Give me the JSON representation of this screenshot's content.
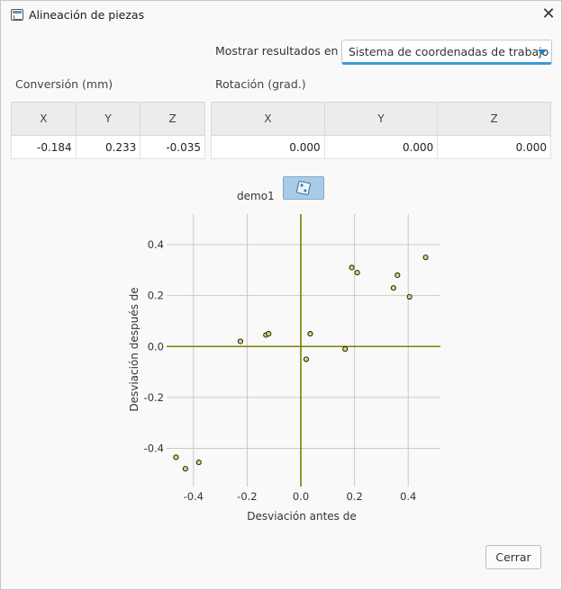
{
  "window": {
    "title": "Alineación de piezas",
    "close_glyph": "✕"
  },
  "display": {
    "label": "Mostrar resultados en",
    "selected": "Sistema de coordenadas de trabajo"
  },
  "translation": {
    "label": "Conversión (mm)",
    "headers": [
      "X",
      "Y",
      "Z"
    ],
    "values": [
      "-0.184",
      "0.233",
      "-0.035"
    ]
  },
  "rotation": {
    "label": "Rotación (grad.)",
    "headers": [
      "X",
      "Y",
      "Z"
    ],
    "values": [
      "0.000",
      "0.000",
      "0.000"
    ]
  },
  "series": {
    "label": "demo1",
    "button_icon": "dice-icon"
  },
  "chart_data": {
    "type": "scatter",
    "title": "",
    "xlabel": "Desviación antes de",
    "ylabel": "Desviación después de",
    "xlim": [
      -0.5,
      0.52
    ],
    "ylim": [
      -0.55,
      0.52
    ],
    "xticks": [
      -0.4,
      -0.2,
      0.0,
      0.2,
      0.4
    ],
    "yticks": [
      -0.4,
      -0.2,
      0.0,
      0.2,
      0.4
    ],
    "xtick_labels": [
      "-0.4",
      "-0.2",
      "0.0",
      "0.2",
      "0.4"
    ],
    "ytick_labels": [
      "-0.4",
      "-0.2",
      "0.0",
      "0.2",
      "0.4"
    ],
    "grid": true,
    "axis_color": "#808000",
    "point_fill": "#d6d66a",
    "points": [
      {
        "x": -0.465,
        "y": -0.435
      },
      {
        "x": -0.43,
        "y": -0.48
      },
      {
        "x": -0.38,
        "y": -0.455
      },
      {
        "x": -0.225,
        "y": 0.02
      },
      {
        "x": -0.13,
        "y": 0.045
      },
      {
        "x": -0.12,
        "y": 0.05
      },
      {
        "x": 0.02,
        "y": -0.05
      },
      {
        "x": 0.035,
        "y": 0.05
      },
      {
        "x": 0.165,
        "y": -0.01
      },
      {
        "x": 0.19,
        "y": 0.31
      },
      {
        "x": 0.21,
        "y": 0.29
      },
      {
        "x": 0.345,
        "y": 0.23
      },
      {
        "x": 0.36,
        "y": 0.28
      },
      {
        "x": 0.405,
        "y": 0.195
      },
      {
        "x": 0.465,
        "y": 0.35
      }
    ]
  },
  "footer": {
    "close_label": "Cerrar"
  }
}
